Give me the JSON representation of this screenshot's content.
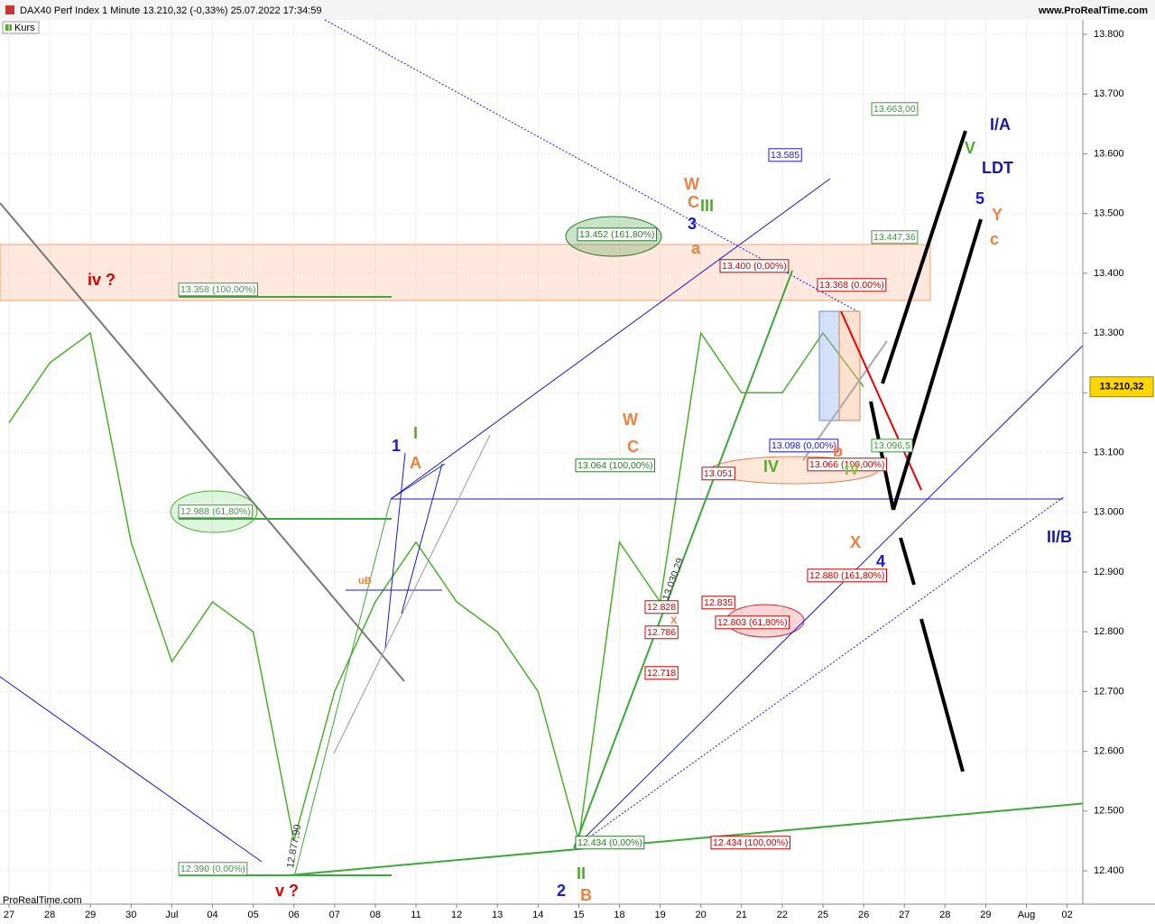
{
  "chart_data": {
    "type": "line",
    "title": "DAX40 Perf Index 1 Minute 13.210,32 (-0,33%) 25.07.2022 17:34:59",
    "source": "www.ProRealTime.com",
    "footer": "ProRealTime.com",
    "last_price": "13.210,32",
    "categories": [
      "27",
      "28",
      "29",
      "30",
      "Jul",
      "04",
      "05",
      "06",
      "07",
      "08",
      "11",
      "12",
      "13",
      "14",
      "15",
      "18",
      "19",
      "20",
      "21",
      "22",
      "25",
      "26",
      "27",
      "28",
      "29",
      "Aug",
      "02"
    ],
    "series": [
      {
        "name": "Kurs",
        "color": "#4caf2a",
        "values": [
          13150,
          13250,
          13300,
          12950,
          12750,
          12850,
          12800,
          12450,
          12700,
          12850,
          12950,
          12850,
          12800,
          12700,
          12450,
          12950,
          12850,
          13300,
          13200,
          13200,
          13300,
          13210,
          null,
          null,
          null,
          null,
          null
        ]
      }
    ],
    "ylim": [
      12360,
      13830
    ],
    "yticks": [
      {
        "value": 12400,
        "label": "12.400"
      },
      {
        "value": 12500,
        "label": "12.500"
      },
      {
        "value": 12600,
        "label": "12.600"
      },
      {
        "value": 12700,
        "label": "12.700"
      },
      {
        "value": 12800,
        "label": "12.800"
      },
      {
        "value": 12900,
        "label": "12.900"
      },
      {
        "value": 13000,
        "label": "13.000"
      },
      {
        "value": 13100,
        "label": "13.100"
      },
      {
        "value": 13200,
        "label": "13.200"
      },
      {
        "value": 13300,
        "label": "13.300"
      },
      {
        "value": 13400,
        "label": "13.400"
      },
      {
        "value": 13500,
        "label": "13.500"
      },
      {
        "value": 13600,
        "label": "13.600"
      },
      {
        "value": 13700,
        "label": "13.700"
      },
      {
        "value": 13800,
        "label": "13.800"
      }
    ],
    "grid": true,
    "price_boxes": [
      "13.663,00",
      "13.585",
      "13.452 (161,80%)",
      "13.447,36",
      "13.400 (0,00%)",
      "13.368 (0,00%)",
      "13.358 (100,00%)",
      "13.098 (0,00%)",
      "13.096,5",
      "13.066 (100,00%)",
      "13.064 (100,00%)",
      "13.051",
      "12.988 (61,80%)",
      "12.880 (161,80%)",
      "12.835",
      "12.828",
      "12.803 (61,80%)",
      "12.786",
      "12.718",
      "12.434 (0,00%)",
      "12.434 (100,00%)",
      "12.390 (0,00%)"
    ],
    "wave_labels": [
      "iv ?",
      "v ?",
      "1",
      "2",
      "3",
      "4",
      "5",
      "I",
      "II",
      "III",
      "IV",
      "IV",
      "V",
      "A",
      "B",
      "C",
      "C",
      "W",
      "W",
      "X",
      "X",
      "Y",
      "a",
      "b",
      "c",
      "I/A",
      "LDT",
      "II/B",
      "uB",
      "12.877,90",
      "13.030,29"
    ]
  }
}
